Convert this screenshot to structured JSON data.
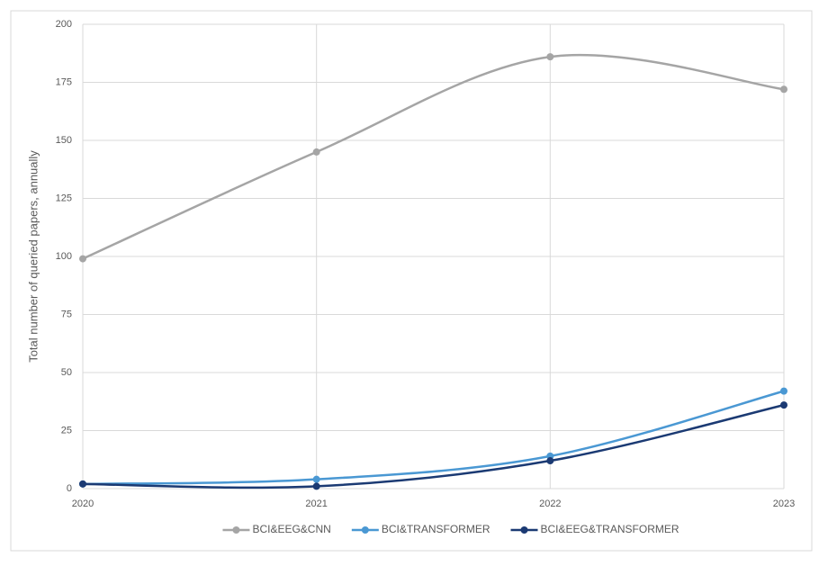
{
  "chart_data": {
    "type": "line",
    "y_label": "Total number of queried papers, annually",
    "categories": [
      "2020",
      "2021",
      "2022",
      "2023"
    ],
    "series": [
      {
        "name": "BCI&EEG&CNN",
        "color": "#a5a5a5",
        "values": [
          99,
          145,
          186,
          172
        ]
      },
      {
        "name": "BCI&TRANSFORMER",
        "color": "#4a98d3",
        "values": [
          2,
          4,
          14,
          42
        ]
      },
      {
        "name": "BCI&EEG&TRANSFORMER",
        "color": "#1b3a73",
        "values": [
          2,
          1,
          12,
          36
        ]
      }
    ],
    "ylim": [
      0,
      200
    ],
    "yticks": [
      0,
      25,
      50,
      75,
      100,
      125,
      150,
      175,
      200
    ],
    "grid": true,
    "smooth": true,
    "legend": "bottom"
  }
}
